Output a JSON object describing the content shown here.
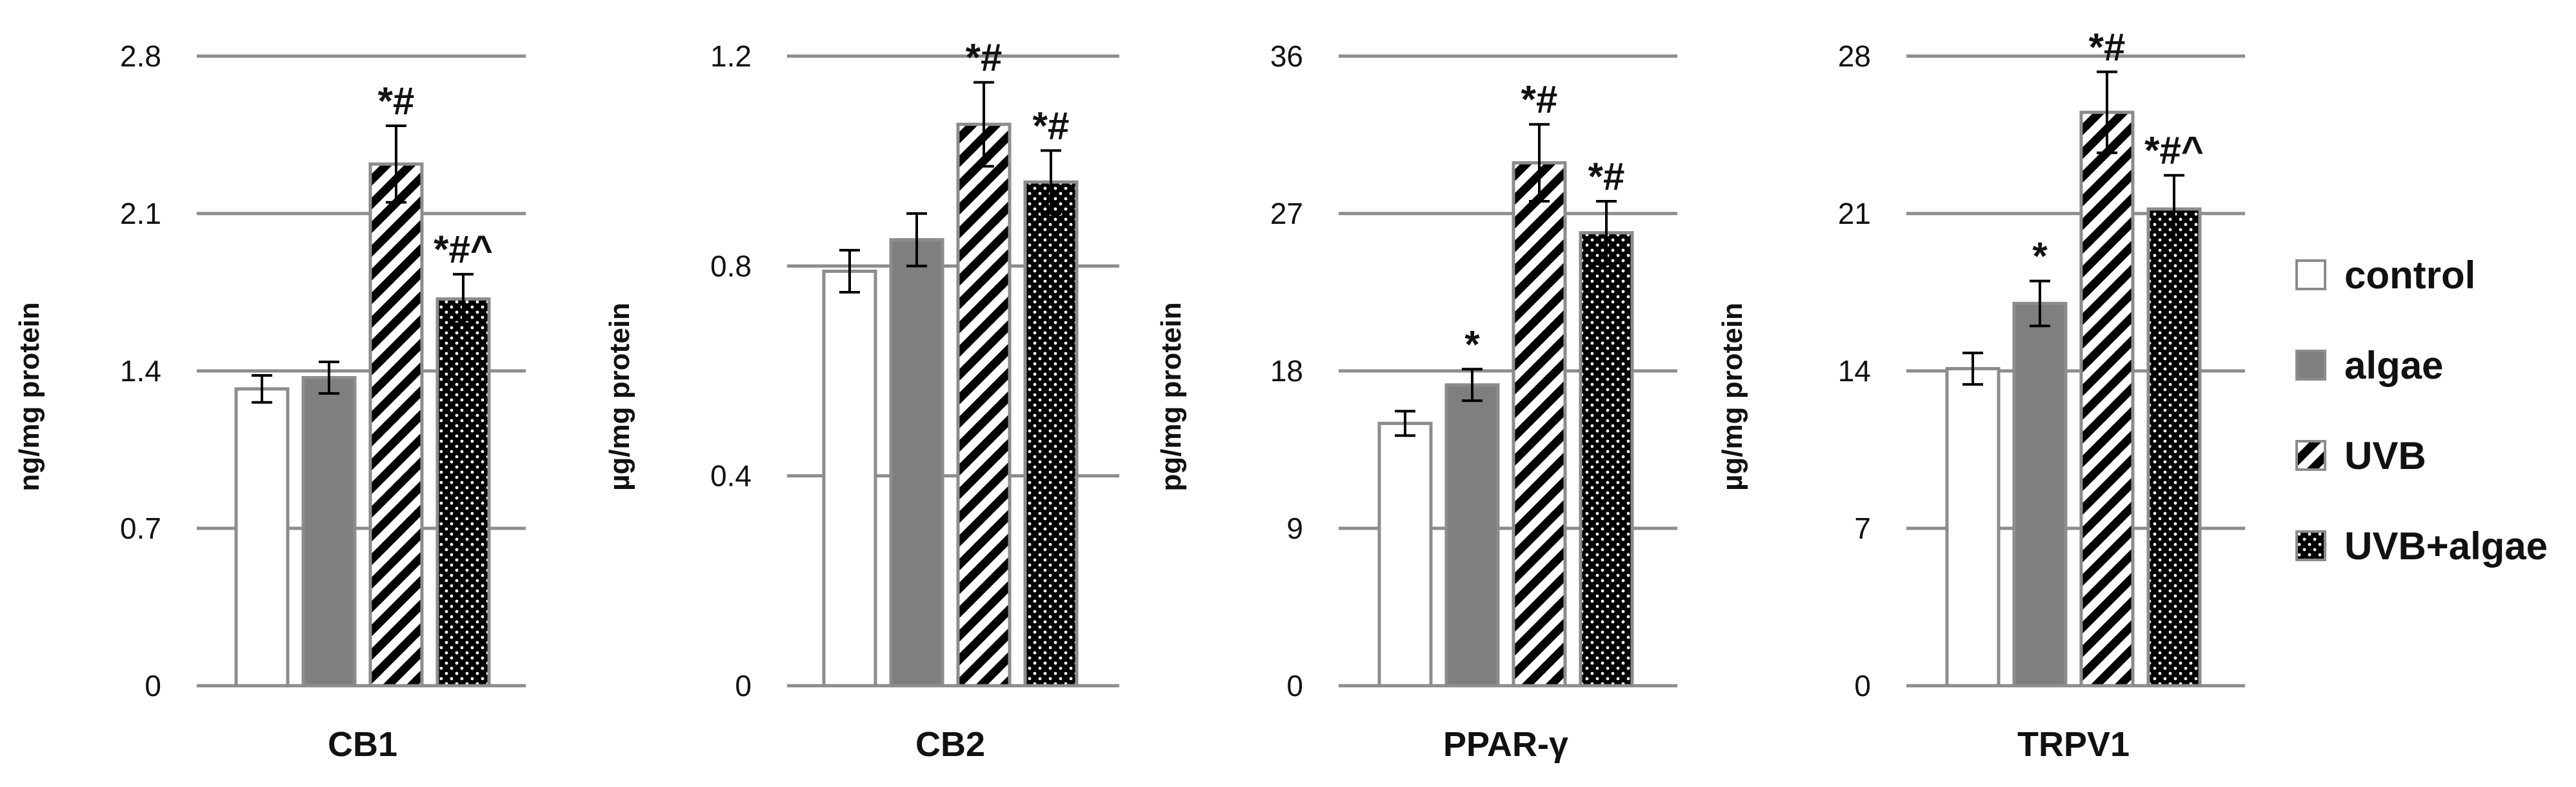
{
  "chart_data": [
    {
      "type": "bar",
      "xlabel": "CB1",
      "ylabel": "ng/mg protein",
      "ylim": [
        0,
        2.8
      ],
      "yticks": [
        "0",
        "0.7",
        "1.4",
        "2.1",
        "2.8"
      ],
      "categories": [
        "control",
        "algae",
        "UVB",
        "UVB+algae"
      ],
      "values": [
        1.32,
        1.37,
        2.32,
        1.72
      ],
      "errors": [
        0.06,
        0.07,
        0.17,
        0.11
      ],
      "annotations": [
        "",
        "",
        "*#",
        "*#^"
      ],
      "grid": true
    },
    {
      "type": "bar",
      "xlabel": "CB2",
      "ylabel": "µg/mg protein",
      "ylim": [
        0,
        1.2
      ],
      "yticks": [
        "0",
        "0.4",
        "0.8",
        "1.2"
      ],
      "categories": [
        "control",
        "algae",
        "UVB",
        "UVB+algae"
      ],
      "values": [
        0.79,
        0.85,
        1.07,
        0.96
      ],
      "errors": [
        0.04,
        0.05,
        0.08,
        0.06
      ],
      "annotations": [
        "",
        "",
        "*#",
        "*#"
      ],
      "grid": true
    },
    {
      "type": "bar",
      "xlabel": "PPAR-γ",
      "ylabel": "pg/mg protein",
      "ylim": [
        0,
        36
      ],
      "yticks": [
        "0",
        "9",
        "18",
        "27",
        "36"
      ],
      "categories": [
        "control",
        "algae",
        "UVB",
        "UVB+algae"
      ],
      "values": [
        15.0,
        17.2,
        29.9,
        25.9
      ],
      "errors": [
        0.7,
        0.9,
        2.2,
        1.8
      ],
      "annotations": [
        "",
        "*",
        "*#",
        "*#"
      ],
      "grid": true
    },
    {
      "type": "bar",
      "xlabel": "TRPV1",
      "ylabel": "µg/mg protein",
      "ylim": [
        0,
        28
      ],
      "yticks": [
        "0",
        "7",
        "14",
        "21",
        "28"
      ],
      "categories": [
        "control",
        "algae",
        "UVB",
        "UVB+algae"
      ],
      "values": [
        14.1,
        17.0,
        25.5,
        21.2
      ],
      "errors": [
        0.7,
        1.0,
        1.8,
        1.5
      ],
      "annotations": [
        "",
        "*",
        "*#",
        "*#^"
      ],
      "grid": true
    }
  ],
  "legend": {
    "placement": "right",
    "entries": [
      {
        "name": "control",
        "pattern": "white"
      },
      {
        "name": "algae",
        "pattern": "gray"
      },
      {
        "name": "UVB",
        "pattern": "diagonal-stripes"
      },
      {
        "name": "UVB+algae",
        "pattern": "black-dots"
      }
    ]
  },
  "colors": {
    "grid": "#8c8c8c",
    "bar_outline": "#8c8c8c",
    "algae_fill": "#7f7f7f",
    "pattern_dark": "#000000",
    "pattern_light": "#ffffff",
    "text": "#111111"
  }
}
